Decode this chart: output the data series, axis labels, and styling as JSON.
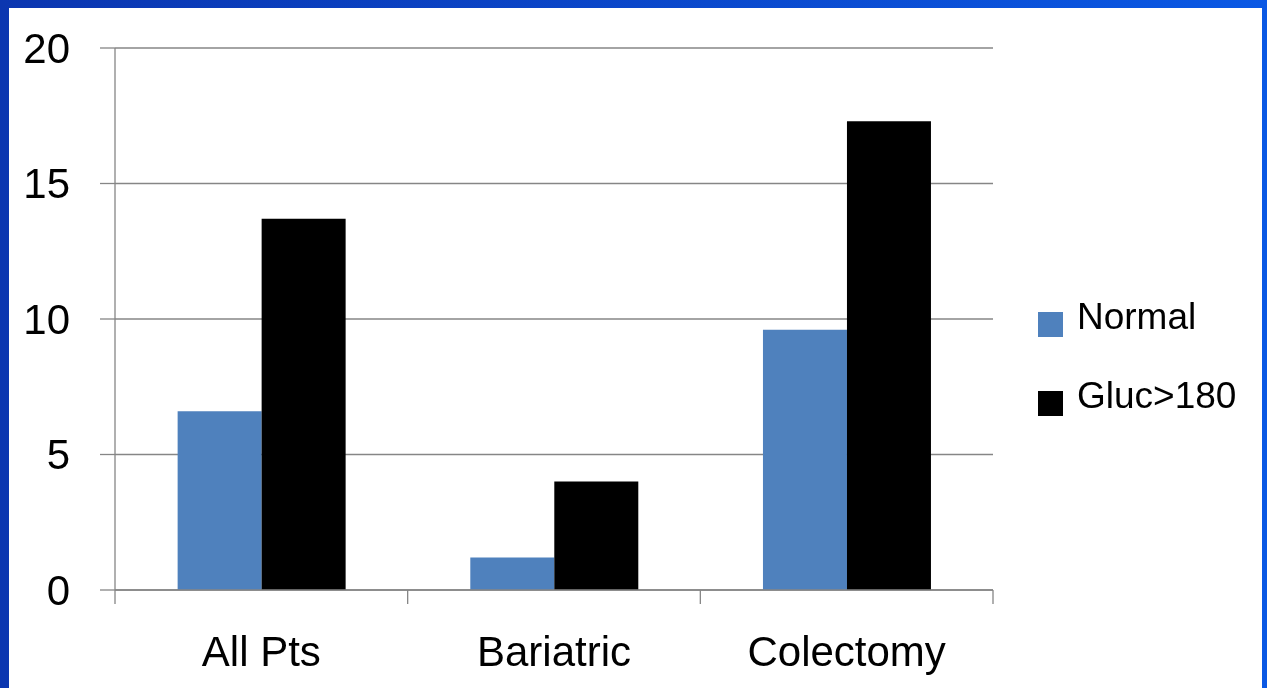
{
  "chart_data": {
    "type": "bar",
    "categories": [
      "All Pts",
      "Bariatric",
      "Colectomy"
    ],
    "series": [
      {
        "name": "Normal",
        "color": "#4f81bd",
        "values": [
          6.6,
          1.2,
          9.6
        ]
      },
      {
        "name": "Gluc>180",
        "color": "#000000",
        "values": [
          13.7,
          4.0,
          17.3
        ]
      }
    ],
    "ylim": [
      0,
      20
    ],
    "yticks": [
      0,
      5,
      10,
      15,
      20
    ],
    "grid": "y",
    "legend": "right"
  }
}
